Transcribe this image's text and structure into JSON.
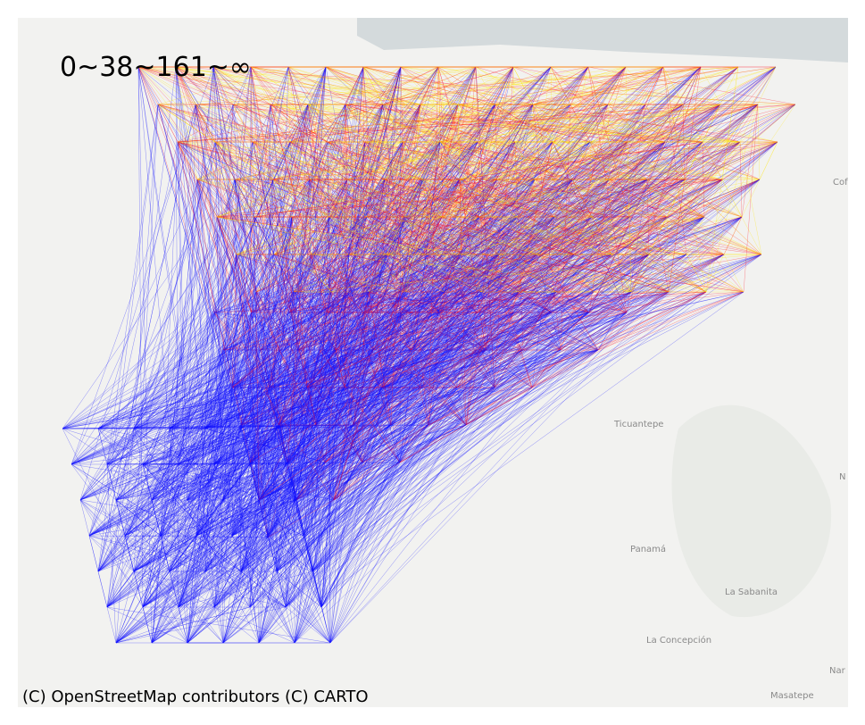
{
  "legend": {
    "label": "0~38~161~∞"
  },
  "attribution": "(C) OpenStreetMap contributors (C) CARTO",
  "places": [
    "Ticuantepe",
    "Panamá",
    "La Sabanita",
    "La Concepción",
    "Masatepe",
    "Cof",
    "N",
    "Nar"
  ]
}
